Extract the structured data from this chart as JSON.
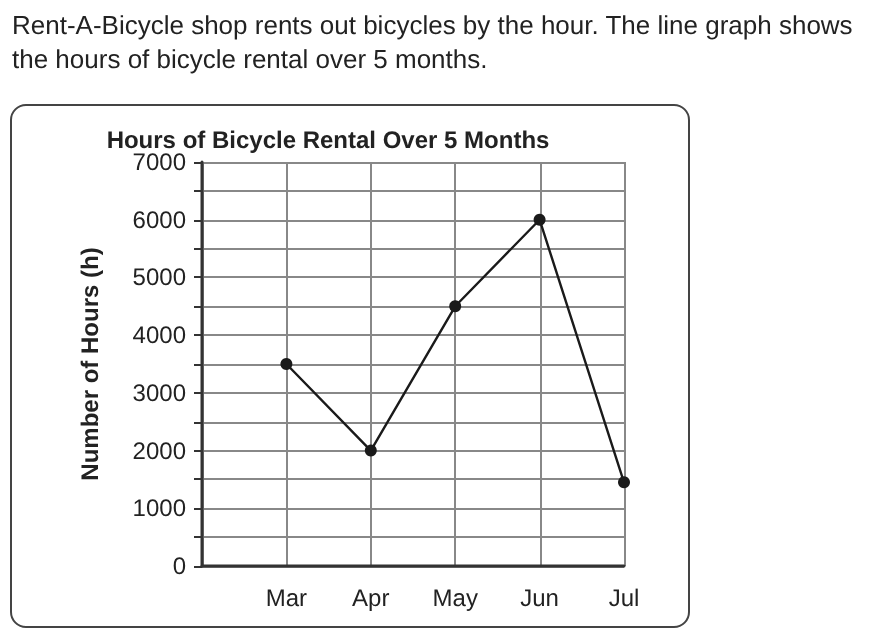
{
  "chart_data": {
    "type": "line",
    "title": "Hours of Bicycle Rental Over 5 Months",
    "annotations": [
      "Rent-A-Bicycle shop rents out bicycles by the hour. The line graph shows the hours of bicycle rental over 5 months."
    ],
    "ylabel": "Number of Hours (h)",
    "categories": [
      null,
      "Mar",
      "Apr",
      "May",
      "Jun",
      "Jul"
    ],
    "series": [
      {
        "color": "#1a1a1a",
        "values": [
          null,
          3500,
          2000,
          4500,
          6000,
          1450
        ]
      }
    ],
    "ylim": [
      0,
      7000
    ],
    "yticks": [
      0,
      {
        "value": 500,
        "label": null
      },
      1000,
      {
        "value": 1500,
        "label": null
      },
      2000,
      {
        "value": 2500,
        "label": null
      },
      3000,
      {
        "value": 3500,
        "label": null
      },
      4000,
      {
        "value": 4500,
        "label": null
      },
      5000,
      {
        "value": 5500,
        "label": null
      },
      6000,
      {
        "value": 6500,
        "label": null
      },
      7000
    ],
    "grid": true,
    "marker": "circle",
    "line_style": "solid"
  }
}
